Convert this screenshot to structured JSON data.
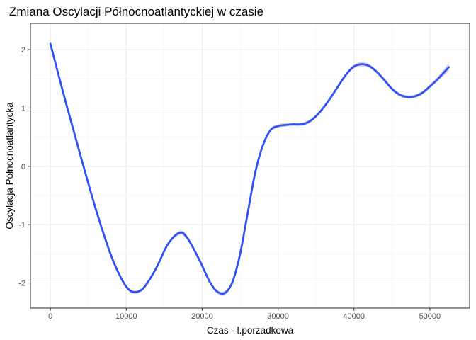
{
  "chart_data": {
    "type": "line",
    "title": "Zmiana Oscylacji Północnoatlantyckiej w czasie",
    "xlabel": "Czas - l.porzadkowa",
    "ylabel": "Oscylacja Północnoatlantycka",
    "xlim": [
      -2630,
      55240
    ],
    "ylim": [
      -2.43,
      2.45
    ],
    "x_ticks": [
      0,
      10000,
      20000,
      30000,
      40000,
      50000
    ],
    "x_tick_labels": [
      "0",
      "10000",
      "20000",
      "30000",
      "40000",
      "50000"
    ],
    "y_ticks": [
      -2,
      -1,
      0,
      1,
      2
    ],
    "y_tick_labels": [
      "-2",
      "-1",
      "0",
      "1",
      "2"
    ],
    "grid": true,
    "series": [
      {
        "line_color": "#3050f8",
        "band_color": "#c0c0c0",
        "x": [
          0,
          2000,
          4000,
          6000,
          8000,
          9500,
          10500,
          11500,
          12500,
          14000,
          15500,
          17000,
          18000,
          19500,
          21000,
          22000,
          23000,
          24000,
          25000,
          26000,
          27000,
          28000,
          29000,
          30000,
          31000,
          32000,
          33000,
          34000,
          35000,
          36000,
          37000,
          38000,
          39000,
          40000,
          41000,
          42000,
          43000,
          44000,
          45000,
          46000,
          47000,
          48000,
          49000,
          50000,
          51000,
          52500
        ],
        "y": [
          2.1,
          1.11,
          0.17,
          -0.74,
          -1.53,
          -1.96,
          -2.13,
          -2.15,
          -2.05,
          -1.73,
          -1.33,
          -1.14,
          -1.22,
          -1.57,
          -1.98,
          -2.15,
          -2.17,
          -1.98,
          -1.5,
          -0.8,
          -0.1,
          0.36,
          0.62,
          0.69,
          0.71,
          0.72,
          0.72,
          0.76,
          0.86,
          1.01,
          1.19,
          1.39,
          1.58,
          1.71,
          1.75,
          1.72,
          1.62,
          1.48,
          1.33,
          1.23,
          1.19,
          1.2,
          1.26,
          1.37,
          1.49,
          1.7
        ],
        "se": [
          0.02,
          0.02,
          0.02,
          0.02,
          0.02,
          0.025,
          0.03,
          0.03,
          0.03,
          0.03,
          0.03,
          0.04,
          0.04,
          0.03,
          0.03,
          0.03,
          0.04,
          0.03,
          0.03,
          0.03,
          0.03,
          0.03,
          0.03,
          0.03,
          0.03,
          0.03,
          0.03,
          0.03,
          0.03,
          0.03,
          0.03,
          0.03,
          0.03,
          0.035,
          0.04,
          0.035,
          0.03,
          0.03,
          0.03,
          0.03,
          0.03,
          0.03,
          0.03,
          0.035,
          0.04,
          0.07
        ]
      }
    ]
  }
}
